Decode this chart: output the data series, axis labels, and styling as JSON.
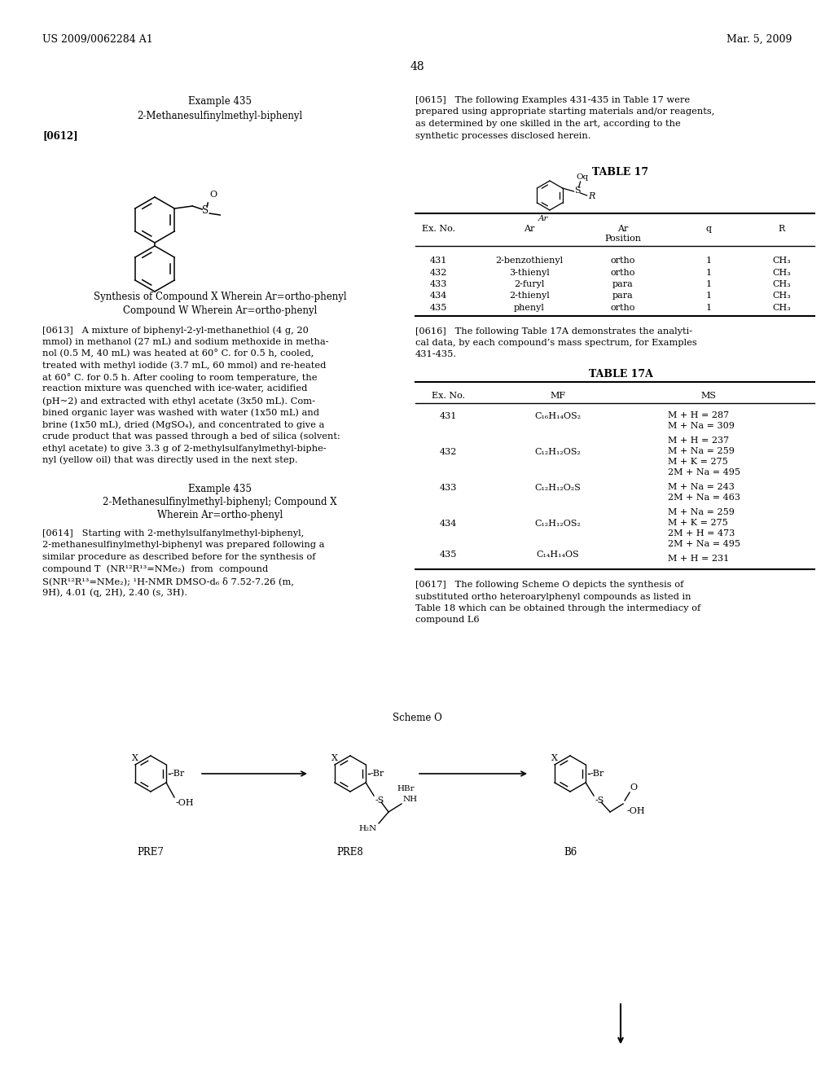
{
  "page_number": "48",
  "header_left": "US 2009/0062284 A1",
  "header_right": "Mar. 5, 2009",
  "background_color": "#ffffff",
  "text_color": "#000000",
  "left_col": {
    "example_title": "Example 435",
    "example_subtitle": "2-Methanesulfinylmethyl-biphenyl",
    "tag1": "[0612]",
    "synthesis_line1": "Synthesis of Compound X Wherein Ar=ortho-phenyl",
    "synthesis_line2": "Compound W Wherein Ar=ortho-phenyl",
    "para0613": "[0613]   A mixture of biphenyl-2-yl-methanethiol (4 g, 20\nmmol) in methanol (27 mL) and sodium methoxide in metha-\nnol (0.5 M, 40 mL) was heated at 60° C. for 0.5 h, cooled,\ntreated with methyl iodide (3.7 mL, 60 mmol) and re-heated\nat 60° C. for 0.5 h. After cooling to room temperature, the\nreaction mixture was quenched with ice-water, acidified\n(pH~2) and extracted with ethyl acetate (3x50 mL). Com-\nbined organic layer was washed with water (1x50 mL) and\nbrine (1x50 mL), dried (MgSO₄), and concentrated to give a\ncrude product that was passed through a bed of silica (solvent:\nethyl acetate) to give 3.3 g of 2-methylsulfanylmethyl-biphe-\nnyl (yellow oil) that was directly used in the next step.",
    "example435_title": "Example 435",
    "example435_sub1": "2-Methanesulfinylmethyl-biphenyl; Compound X",
    "example435_sub2": "Wherein Ar=ortho-phenyl",
    "para0614": "[0614]   Starting with 2-methylsulfanylmethyl-biphenyl,\n2-methanesulfinylmethyl-biphenyl was prepared following a\nsimilar procedure as described before for the synthesis of\ncompound T  (NR¹²R¹³=NMe₂)  from  compound\nS(NR¹²R¹³=NMe₂); ¹H-NMR DMSO-d₆ δ 7.52-7.26 (m,\n9H), 4.01 (q, 2H), 2.40 (s, 3H)."
  },
  "right_col": {
    "para0615": "[0615]   The following Examples 431-435 in Table 17 were\nprepared using appropriate starting materials and/or reagents,\nas determined by one skilled in the art, according to the\nsynthetic processes disclosed herein.",
    "table17_title": "TABLE 17",
    "table17_rows": [
      [
        "431",
        "2-benzothienyl",
        "ortho",
        "1",
        "CH₃"
      ],
      [
        "432",
        "3-thienyl",
        "ortho",
        "1",
        "CH₃"
      ],
      [
        "433",
        "2-furyl",
        "para",
        "1",
        "CH₃"
      ],
      [
        "434",
        "2-thienyl",
        "para",
        "1",
        "CH₃"
      ],
      [
        "435",
        "phenyl",
        "ortho",
        "1",
        "CH₃"
      ]
    ],
    "para0616": "[0616]   The following Table 17A demonstrates the analyti-\ncal data, by each compound’s mass spectrum, for Examples\n431-435.",
    "table17a_title": "TABLE 17A",
    "table17a_headers": [
      "Ex. No.",
      "MF",
      "MS"
    ],
    "table17a_rows": [
      [
        "431",
        "C₁₆H₁₄OS₂",
        "M + H = 287\nM + Na = 309"
      ],
      [
        "432",
        "C₁₂H₁₂OS₂",
        "M + H = 237\nM + Na = 259\nM + K = 275\n2M + Na = 495"
      ],
      [
        "433",
        "C₁₂H₁₂O₂S",
        "M + Na = 243\n2M + Na = 463"
      ],
      [
        "434",
        "C₁₂H₁₂OS₂",
        "M + Na = 259\nM + K = 275\n2M + H = 473\n2M + Na = 495"
      ],
      [
        "435",
        "C₁₄H₁₄OS",
        "M + H = 231"
      ]
    ],
    "para0617": "[0617]   The following Scheme O depicts the synthesis of\nsubstituted ortho heteroarylphenyl compounds as listed in\nTable 18 which can be obtained through the intermediacy of\ncompound L6"
  },
  "scheme_label": "Scheme O",
  "compound_labels": [
    "PRE7",
    "PRE8",
    "B6"
  ]
}
